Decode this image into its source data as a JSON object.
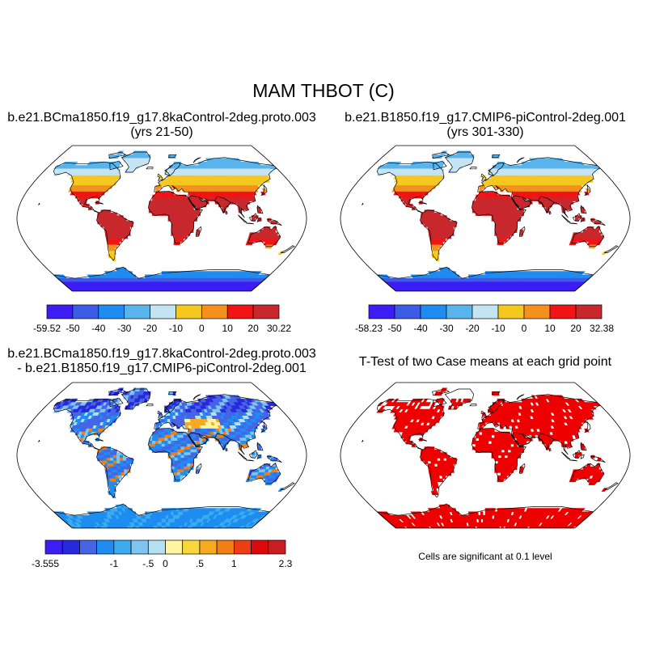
{
  "figure": {
    "title": "MAM THBOT (C)"
  },
  "panels": {
    "p1": {
      "title": "b.e21.BCma1850.f19_g17.8kaControl-2deg.proto.003",
      "subtitle": "(yrs 21-50)",
      "colorbar_labels": [
        "-59.52",
        "-50",
        "-40",
        "-30",
        "-20",
        "-10",
        "0",
        "10",
        "20",
        "30.22"
      ]
    },
    "p2": {
      "title": "b.e21.B1850.f19_g17.CMIP6-piControl-2deg.001",
      "subtitle": "(yrs 301-330)",
      "colorbar_labels": [
        "-58.23",
        "-50",
        "-40",
        "-30",
        "-20",
        "-10",
        "0",
        "10",
        "20",
        "32.38"
      ]
    },
    "p3": {
      "title": "b.e21.BCma1850.f19_g17.8kaControl-2deg.proto.003",
      "subtitle": "- b.e21.B1850.f19_g17.CMIP6-piControl-2deg.001",
      "colorbar_labels": [
        "-3.555",
        "-1",
        "-.5",
        "0",
        ".5",
        "1",
        "2.3"
      ]
    },
    "p4": {
      "title": "T-Test of two Case means at each grid point",
      "note": "Cells are significant at 0.1 level"
    }
  },
  "colors": {
    "abs_scale": [
      "#3c1ef5",
      "#3c5ce6",
      "#1e8cf0",
      "#5ab4ec",
      "#c4e4f4",
      "#f4c81e",
      "#f4901e",
      "#f01414",
      "#c8282d"
    ],
    "diff_scale": [
      "#3c1ef5",
      "#2828dc",
      "#4664e6",
      "#1e8cf0",
      "#3cacf0",
      "#7ec6f0",
      "#b4e0f0",
      "#fff5a0",
      "#fcd73c",
      "#f8aa1e",
      "#f47d14",
      "#ee3c14",
      "#dc0a0a",
      "#c81e23"
    ],
    "significance": "#ee0000"
  },
  "chart_data": [
    {
      "type": "heatmap",
      "projection": "Robinson",
      "title": "b.e21.BCma1850.f19_g17.8kaControl-2deg.proto.003",
      "subtitle": "(yrs 21-50)",
      "value_range": [
        -59.52,
        30.22
      ],
      "colorbar_ticks": [
        -59.52,
        -50,
        -40,
        -30,
        -20,
        -10,
        0,
        10,
        20,
        30.22
      ]
    },
    {
      "type": "heatmap",
      "projection": "Robinson",
      "title": "b.e21.B1850.f19_g17.CMIP6-piControl-2deg.001",
      "subtitle": "(yrs 301-330)",
      "value_range": [
        -58.23,
        32.38
      ],
      "colorbar_ticks": [
        -58.23,
        -50,
        -40,
        -30,
        -20,
        -10,
        0,
        10,
        20,
        32.38
      ]
    },
    {
      "type": "heatmap",
      "projection": "Robinson",
      "title": "b.e21.BCma1850.f19_g17.8kaControl-2deg.proto.003",
      "subtitle": "- b.e21.B1850.f19_g17.CMIP6-piControl-2deg.001",
      "value_range": [
        -3.555,
        2.3
      ],
      "colorbar_ticks": [
        -3.555,
        -1,
        -0.5,
        0,
        0.5,
        1,
        2.3
      ]
    },
    {
      "type": "heatmap",
      "projection": "Robinson",
      "title": "T-Test of two Case means at each grid point",
      "note": "Cells are significant at 0.1 level"
    }
  ]
}
